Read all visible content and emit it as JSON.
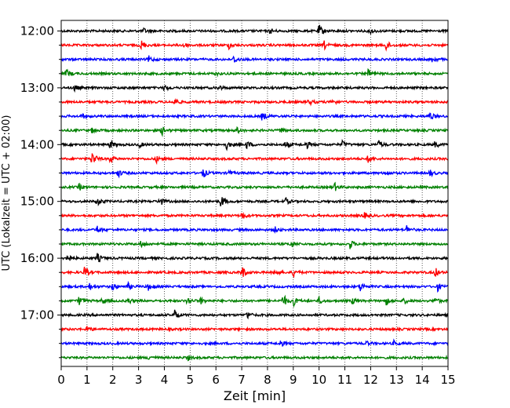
{
  "chart_data": {
    "type": "helicorder",
    "xlabel": "Zeit  [min]",
    "ylabel": "UTC (Lokalzeit = UTC + 02:00)",
    "xlim": [
      0,
      15
    ],
    "x_ticks": [
      0,
      1,
      2,
      3,
      4,
      5,
      6,
      7,
      8,
      9,
      10,
      11,
      12,
      13,
      14,
      15
    ],
    "grid_vertical": "dotted",
    "line_interval_minutes": 15,
    "trace_colors_cycle": [
      "#000000",
      "#ff0000",
      "#0000ff",
      "#008000"
    ],
    "y_tick_labels": [
      "12:00",
      "13:00",
      "14:00",
      "15:00",
      "16:00",
      "17:00"
    ],
    "traces": [
      {
        "start": "12:00",
        "events": [
          [
            3.2,
            0.3
          ],
          [
            8.1,
            0.3
          ],
          [
            10.0,
            0.8
          ],
          [
            12.0,
            0.3
          ]
        ]
      },
      {
        "start": "12:15",
        "events": [
          [
            3.1,
            0.6
          ],
          [
            4.7,
            0.5
          ],
          [
            6.5,
            0.4
          ],
          [
            10.2,
            0.5
          ],
          [
            12.6,
            0.6
          ]
        ]
      },
      {
        "start": "12:30",
        "events": [
          [
            3.4,
            0.4
          ],
          [
            6.7,
            0.5
          ],
          [
            14.4,
            0.4
          ]
        ]
      },
      {
        "start": "12:45",
        "events": [
          [
            0.2,
            0.6
          ],
          [
            6.0,
            0.2
          ],
          [
            11.9,
            0.5
          ]
        ]
      },
      {
        "start": "13:00",
        "events": [
          [
            0.5,
            0.4
          ],
          [
            4.0,
            0.4
          ],
          [
            6.1,
            0.3
          ]
        ]
      },
      {
        "start": "13:15",
        "events": [
          [
            4.4,
            0.5
          ],
          [
            9.6,
            0.4
          ],
          [
            10.5,
            0.4
          ]
        ]
      },
      {
        "start": "13:30",
        "events": [
          [
            0.8,
            0.3
          ],
          [
            7.8,
            0.6
          ],
          [
            14.3,
            0.5
          ]
        ]
      },
      {
        "start": "13:45",
        "events": [
          [
            1.2,
            0.3
          ],
          [
            3.9,
            0.6
          ],
          [
            6.8,
            0.4
          ],
          [
            8.5,
            0.4
          ]
        ]
      },
      {
        "start": "14:00",
        "events": [
          [
            1.9,
            0.5
          ],
          [
            3.0,
            0.4
          ],
          [
            6.4,
            0.6
          ],
          [
            7.2,
            0.5
          ],
          [
            8.7,
            0.4
          ],
          [
            9.5,
            0.5
          ],
          [
            10.9,
            0.4
          ],
          [
            12.3,
            0.5
          ],
          [
            14.5,
            0.4
          ]
        ]
      },
      {
        "start": "14:15",
        "events": [
          [
            1.2,
            1.0
          ],
          [
            1.9,
            0.5
          ],
          [
            3.7,
            0.4
          ],
          [
            11.9,
            0.4
          ]
        ]
      },
      {
        "start": "14:30",
        "events": [
          [
            2.2,
            0.5
          ],
          [
            5.5,
            0.6
          ],
          [
            6.5,
            0.3
          ],
          [
            12.6,
            0.4
          ],
          [
            14.3,
            0.4
          ]
        ]
      },
      {
        "start": "14:45",
        "events": [
          [
            0.7,
            0.4
          ],
          [
            10.6,
            0.5
          ]
        ]
      },
      {
        "start": "15:00",
        "events": [
          [
            1.4,
            0.6
          ],
          [
            3.8,
            0.7
          ],
          [
            6.2,
            0.9
          ],
          [
            8.7,
            0.4
          ]
        ]
      },
      {
        "start": "15:15",
        "events": [
          [
            7.0,
            0.5
          ],
          [
            11.7,
            0.5
          ]
        ]
      },
      {
        "start": "15:30",
        "events": [
          [
            1.4,
            0.5
          ],
          [
            8.3,
            0.3
          ],
          [
            13.4,
            0.5
          ]
        ]
      },
      {
        "start": "15:45",
        "events": [
          [
            3.1,
            0.4
          ],
          [
            8.9,
            0.5
          ],
          [
            11.2,
            0.6
          ]
        ]
      },
      {
        "start": "16:00",
        "events": [
          [
            0.2,
            0.8
          ],
          [
            1.4,
            0.6
          ]
        ]
      },
      {
        "start": "16:15",
        "events": [
          [
            0.9,
            0.7
          ],
          [
            7.0,
            0.9
          ],
          [
            8.3,
            0.4
          ],
          [
            9.0,
            0.5
          ],
          [
            14.5,
            0.6
          ]
        ]
      },
      {
        "start": "16:30",
        "events": [
          [
            1.1,
            0.4
          ],
          [
            2.0,
            0.5
          ],
          [
            2.6,
            0.4
          ],
          [
            3.4,
            0.6
          ],
          [
            11.6,
            0.6
          ],
          [
            14.6,
            0.5
          ]
        ]
      },
      {
        "start": "16:45",
        "events": [
          [
            0.7,
            0.6
          ],
          [
            1.6,
            0.4
          ],
          [
            2.6,
            0.4
          ],
          [
            4.9,
            0.5
          ],
          [
            5.4,
            0.4
          ],
          [
            8.6,
            0.9
          ],
          [
            9.0,
            0.6
          ],
          [
            10.0,
            0.4
          ],
          [
            11.3,
            0.4
          ],
          [
            12.6,
            0.5
          ],
          [
            13.3,
            0.4
          ],
          [
            14.5,
            0.4
          ]
        ]
      },
      {
        "start": "17:00",
        "events": [
          [
            4.4,
            0.6
          ],
          [
            7.2,
            0.5
          ]
        ]
      },
      {
        "start": "17:15",
        "events": [
          [
            1.0,
            0.4
          ]
        ]
      },
      {
        "start": "17:30",
        "events": [
          [
            8.5,
            0.4
          ],
          [
            11.8,
            0.3
          ],
          [
            12.9,
            0.3
          ]
        ]
      },
      {
        "start": "17:45",
        "events": [
          [
            3.4,
            0.3
          ],
          [
            4.9,
            0.3
          ]
        ]
      }
    ]
  }
}
